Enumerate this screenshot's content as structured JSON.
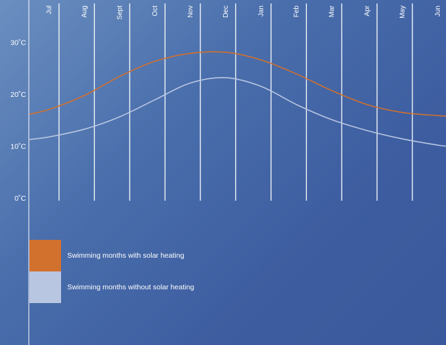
{
  "chart_data": {
    "type": "line",
    "title": "",
    "xlabel": "",
    "ylabel": "",
    "categories": [
      "Jul",
      "Aug",
      "Sept",
      "Oct",
      "Nov",
      "Dec",
      "Jan",
      "Feb",
      "Mar",
      "Apr",
      "May",
      "Jun"
    ],
    "y_ticks": [
      "0˚C",
      "10˚C",
      "20˚C",
      "30˚C"
    ],
    "ylim": [
      0,
      30
    ],
    "grid": "vertical lines at month boundaries",
    "series": [
      {
        "name": "Swimming months with solar heating",
        "color": "#d2702d",
        "values": [
          17.2,
          19.9,
          23.6,
          26.5,
          28.0,
          28.2,
          26.7,
          24.0,
          20.8,
          18.1,
          16.6,
          16.0
        ]
      },
      {
        "name": "Swimming months without solar heating",
        "color": "#b9c6e2",
        "values": [
          11.9,
          13.4,
          15.8,
          19.1,
          22.3,
          23.3,
          21.6,
          18.1,
          15.2,
          13.1,
          11.5,
          10.3
        ]
      }
    ]
  }
}
